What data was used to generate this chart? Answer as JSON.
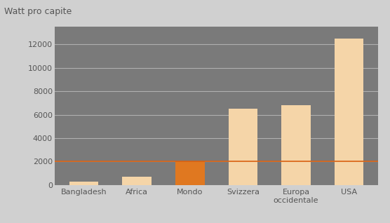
{
  "categories": [
    "Bangladesh",
    "Africa",
    "Mondo",
    "Svizzera",
    "Europa\noccidentale",
    "USA"
  ],
  "values": [
    300,
    700,
    2000,
    6500,
    6800,
    12500
  ],
  "bar_colors": [
    "#f5d5a8",
    "#f5d5a8",
    "#e07820",
    "#f5d5a8",
    "#f5d5a8",
    "#f5d5a8"
  ],
  "reference_line_y": 2000,
  "reference_line_color": "#d96010",
  "reference_label": "2000",
  "reference_label_color": "#d96010",
  "title_label": "Watt pro capite",
  "ylim": [
    0,
    13500
  ],
  "yticks": [
    0,
    2000,
    4000,
    6000,
    8000,
    10000,
    12000
  ],
  "plot_bg_color": "#7a7a7a",
  "outer_bg_color": "#d0d0d0",
  "grid_color": "#b0b0b0",
  "tick_fontsize": 8,
  "title_fontsize": 9,
  "bar_width": 0.55,
  "reference_label_fontsize": 8
}
